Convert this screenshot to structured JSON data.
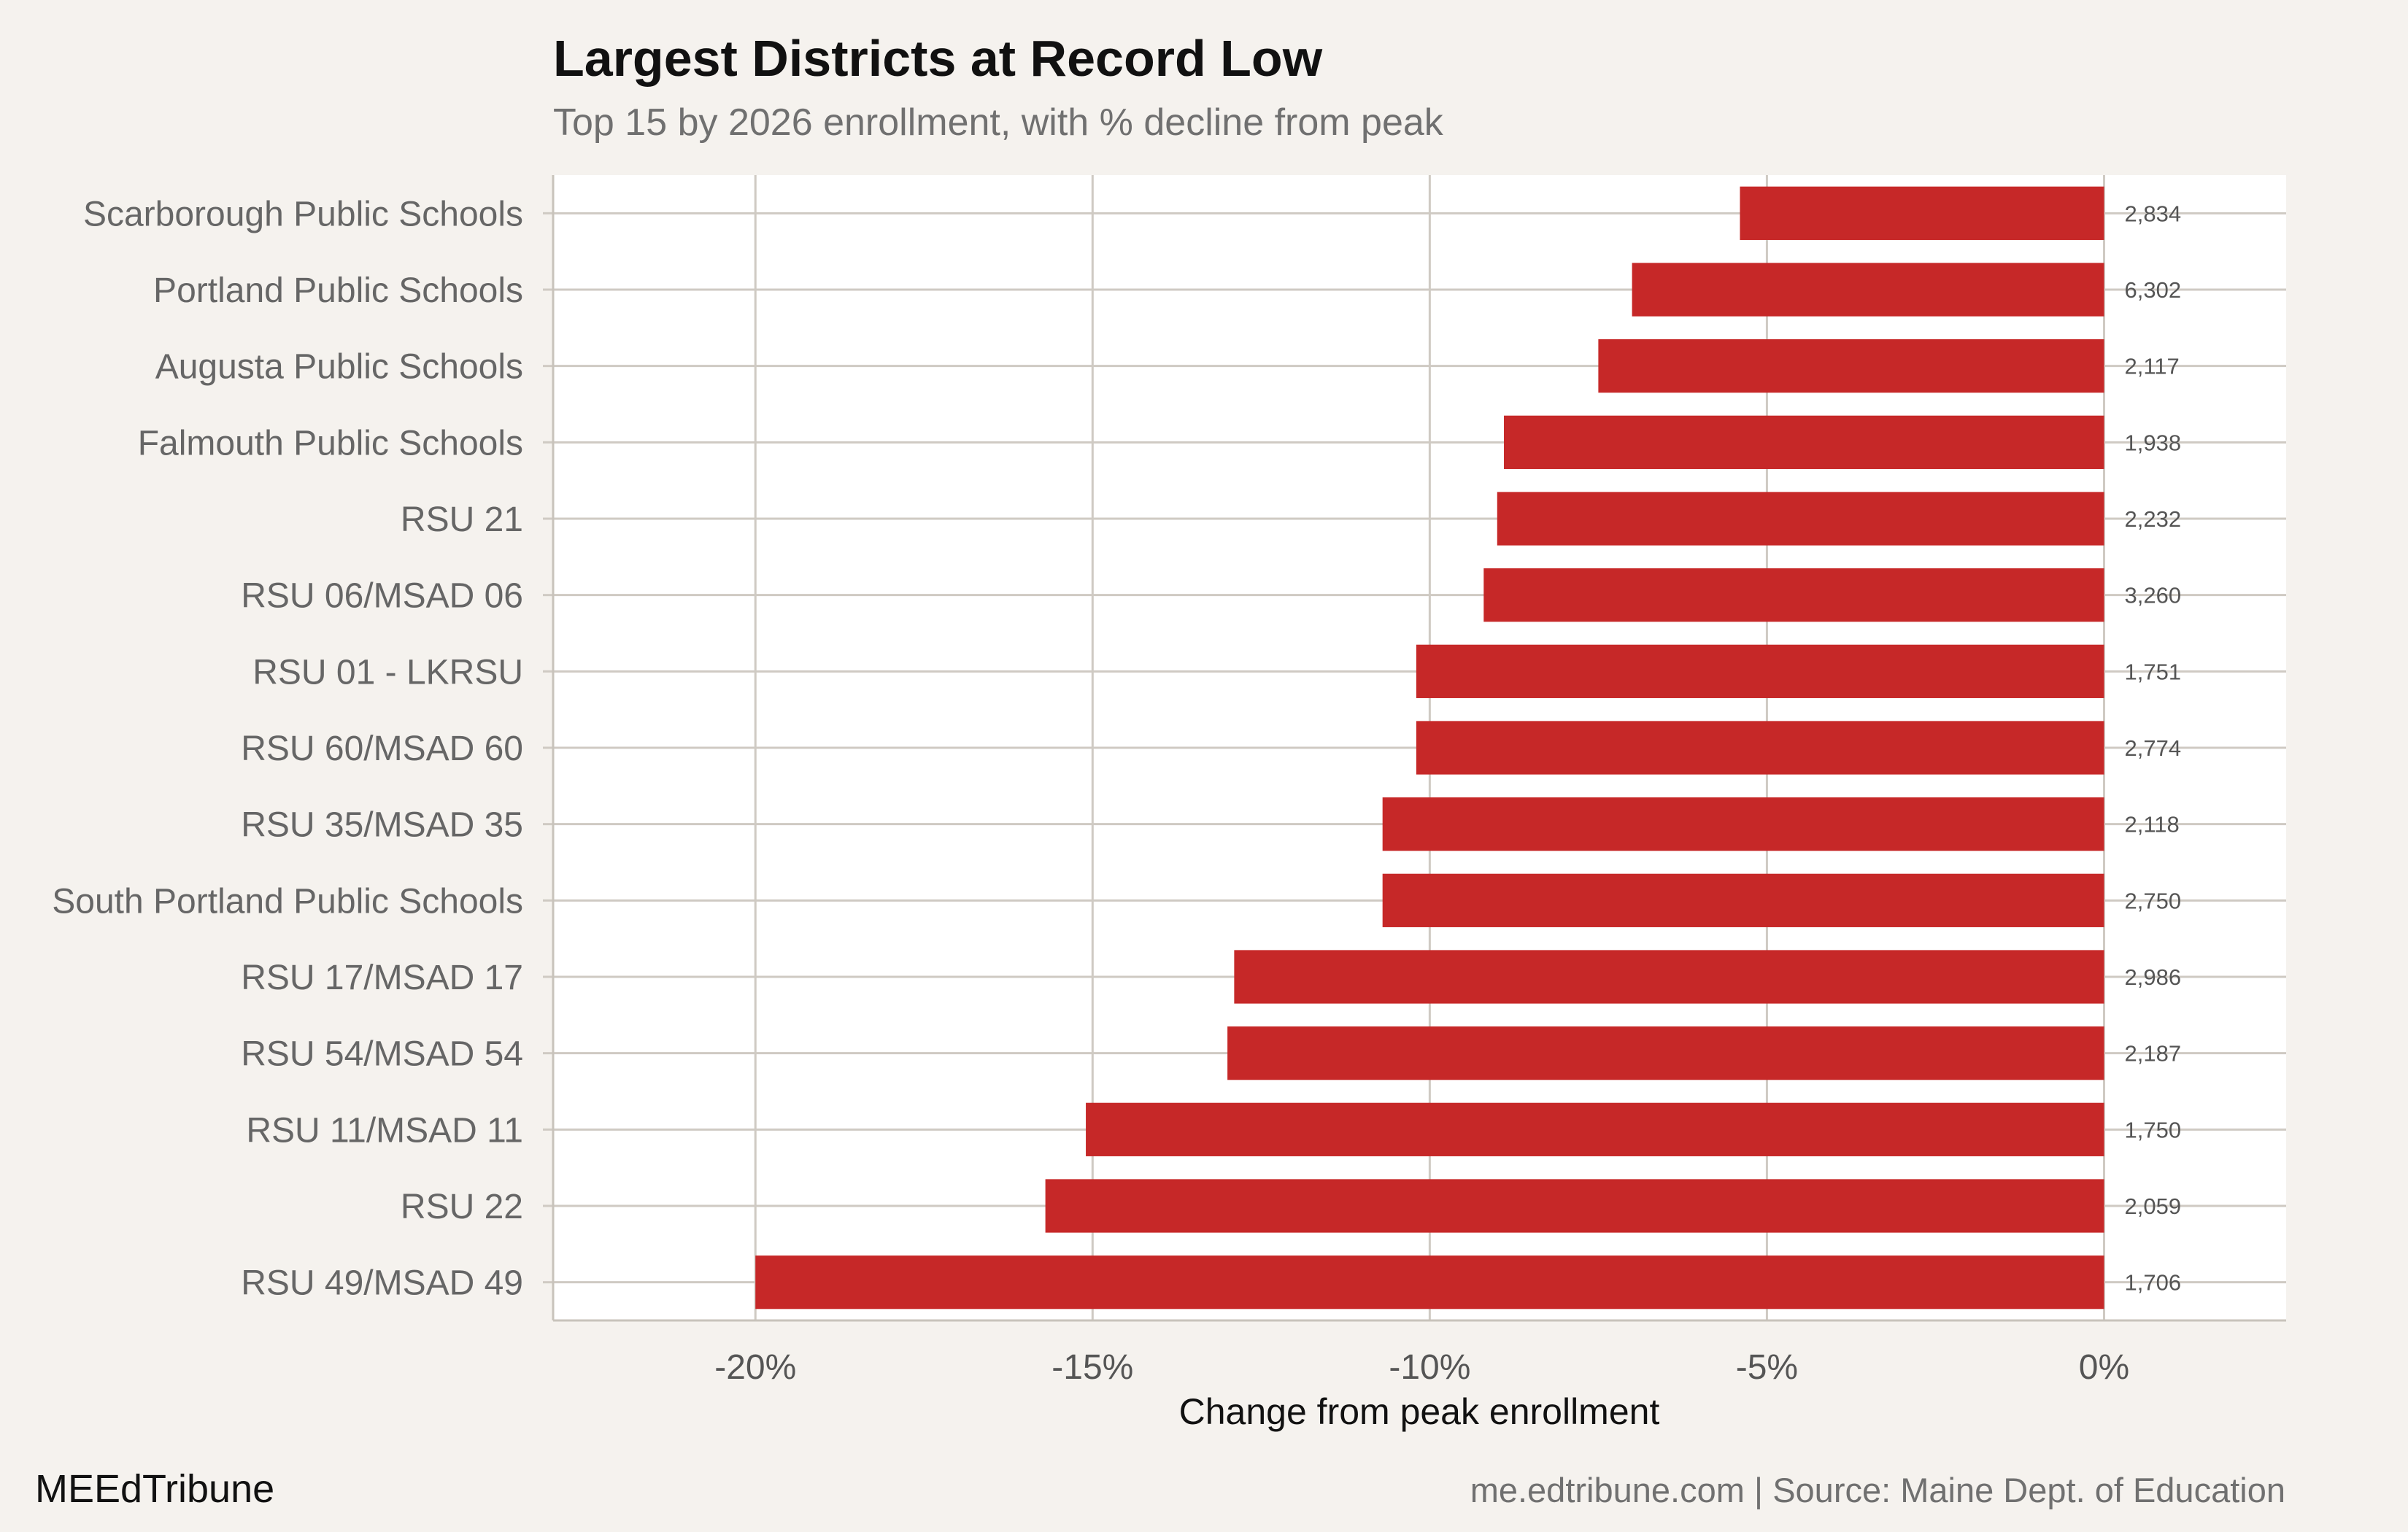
{
  "title": "Largest Districts at Record Low",
  "subtitle": "Top 15 by 2026 enrollment, with % decline from peak",
  "brand": "MEEdTribune",
  "source": "me.edtribune.com | Source: Maine Dept. of Education",
  "colors": {
    "background": "#f5f2ee",
    "panel": "#ffffff",
    "bar": "#c62828",
    "grid": "#cfcac3",
    "axis_text": "#555555",
    "label_text": "#666666"
  },
  "chart_data": {
    "type": "bar",
    "orientation": "horizontal",
    "title": "Largest Districts at Record Low",
    "subtitle": "Top 15 by 2026 enrollment, with % decline from peak",
    "xlabel": "Change from peak enrollment",
    "ylabel": "",
    "xlim": [
      -23,
      2.7
    ],
    "xticks": [
      -20,
      -15,
      -10,
      -5,
      0
    ],
    "xtick_labels": [
      "-20%",
      "-15%",
      "-10%",
      "-5%",
      "0%"
    ],
    "grid": true,
    "categories": [
      "Scarborough Public Schools",
      "Portland Public Schools",
      "Augusta Public Schools",
      "Falmouth Public Schools",
      "RSU 21",
      "RSU 06/MSAD 06",
      "RSU 01 - LKRSU",
      "RSU 60/MSAD 60",
      "RSU 35/MSAD 35",
      "South Portland Public Schools",
      "RSU 17/MSAD 17",
      "RSU 54/MSAD 54",
      "RSU 11/MSAD 11",
      "RSU 22",
      "RSU 49/MSAD 49"
    ],
    "values": [
      -5.4,
      -7.0,
      -7.5,
      -8.9,
      -9.0,
      -9.2,
      -10.2,
      -10.2,
      -10.7,
      -10.7,
      -12.9,
      -13.0,
      -15.1,
      -15.7,
      -20.0
    ],
    "enrollment_labels": [
      "2,834",
      "6,302",
      "2,117",
      "1,938",
      "2,232",
      "3,260",
      "1,751",
      "2,774",
      "2,118",
      "2,750",
      "2,986",
      "2,187",
      "1,750",
      "2,059",
      "1,706"
    ]
  }
}
